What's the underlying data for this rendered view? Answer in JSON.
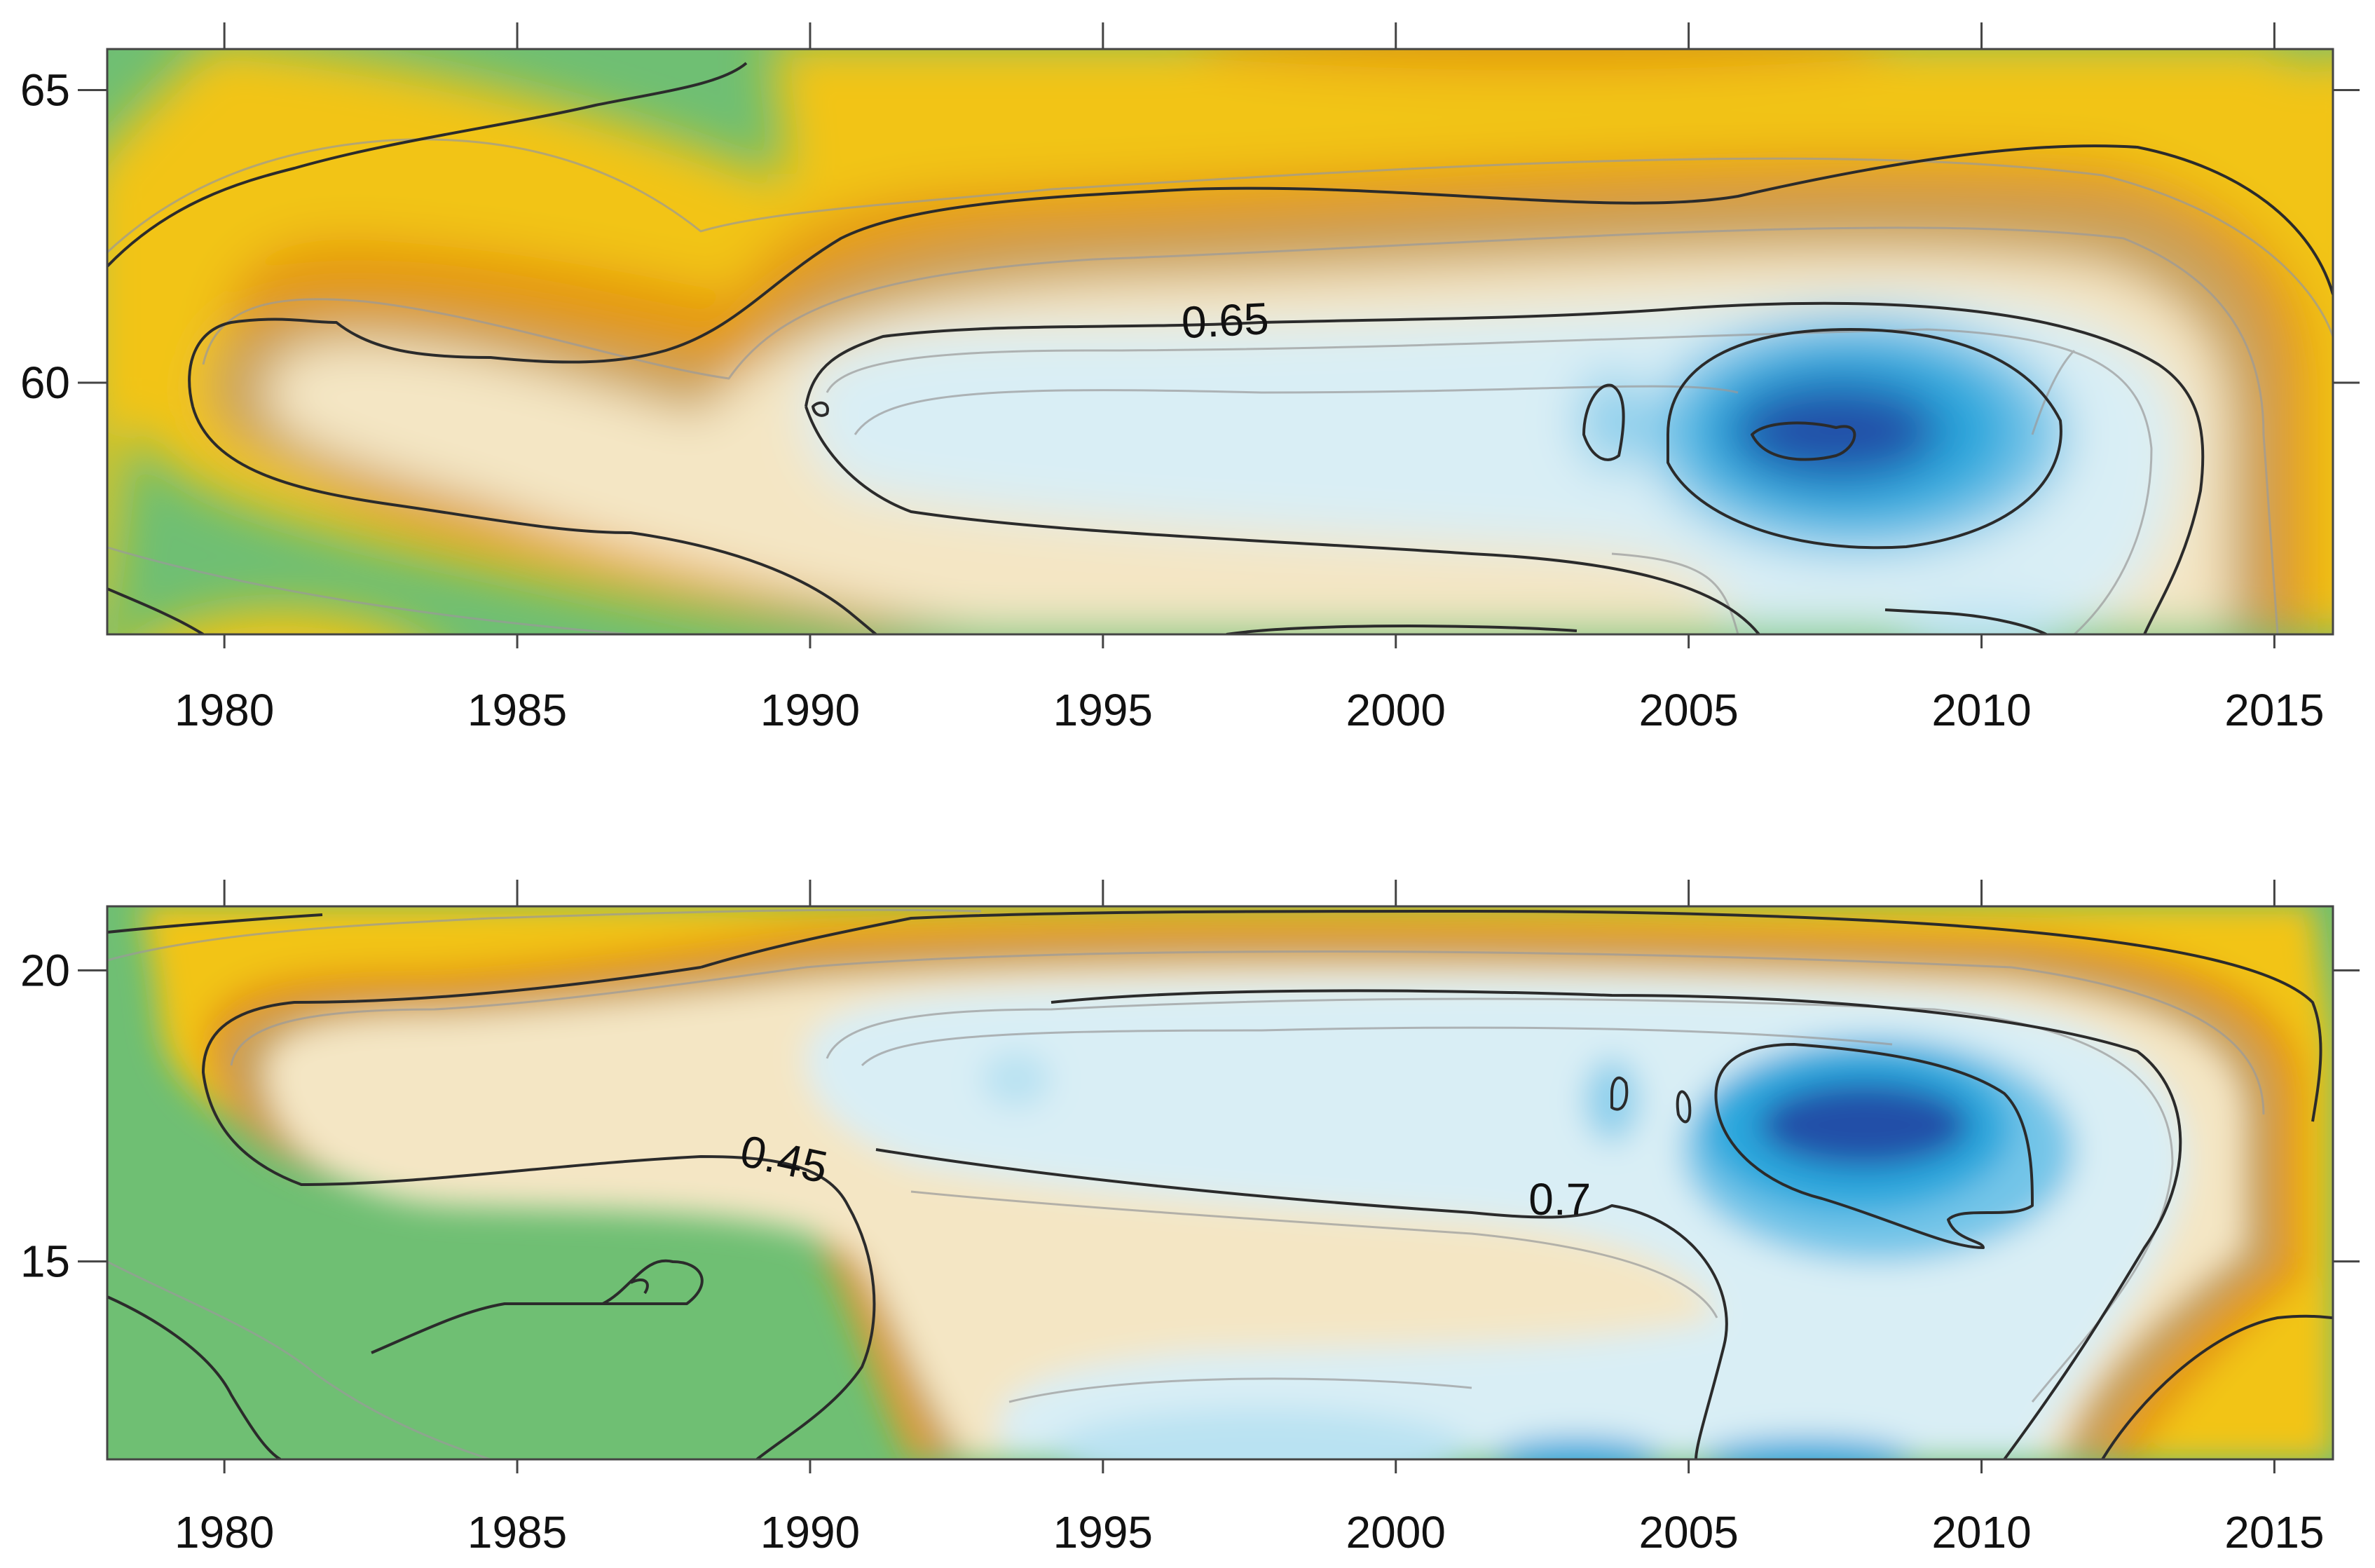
{
  "chart_data": [
    {
      "type": "heatmap",
      "panel": "top",
      "title": "",
      "xlabel": "",
      "ylabel": "",
      "xlim": [
        1978,
        2016
      ],
      "ylim": [
        55.7,
        65.7
      ],
      "x_ticks": [
        1980,
        1985,
        1990,
        1995,
        2000,
        2005,
        2010,
        2015
      ],
      "x_tick_labels": [
        "1980",
        "1985",
        "1990",
        "1995",
        "2000",
        "2005",
        "2010",
        "2015"
      ],
      "y_ticks": [
        60,
        65
      ],
      "y_tick_labels": [
        "60",
        "65"
      ],
      "contour_labels": [
        {
          "text": "0.65",
          "x": 1997.1,
          "y": 60.8
        }
      ],
      "colormap": [
        "#6fbf73",
        "#f2c417",
        "#e59a0c",
        "#c9a15a",
        "#f4e6c4",
        "#d9eef5",
        "#2aa7dd",
        "#234fa8"
      ],
      "features": [
        {
          "name": "minimum-core",
          "x_range": [
            2006,
            2010.5
          ],
          "y_range": [
            58.5,
            59.8
          ]
        }
      ]
    },
    {
      "type": "heatmap",
      "panel": "bottom",
      "title": "",
      "xlabel": "",
      "ylabel": "",
      "xlim": [
        1978,
        2016
      ],
      "ylim": [
        11.6,
        21.1
      ],
      "x_ticks": [
        1980,
        1985,
        1990,
        1995,
        2000,
        2005,
        2010,
        2015
      ],
      "x_tick_labels": [
        "1980",
        "1985",
        "1990",
        "1995",
        "2000",
        "2005",
        "2010",
        "2015"
      ],
      "y_ticks": [
        15,
        20
      ],
      "y_tick_labels": [
        "15",
        "20"
      ],
      "contour_labels": [
        {
          "text": "0.45",
          "x": 1989.5,
          "y": 16.5
        },
        {
          "text": "0.7",
          "x": 2002.8,
          "y": 15.8
        }
      ],
      "colormap": [
        "#6fbf73",
        "#f2c417",
        "#e59a0c",
        "#c9a15a",
        "#f4e6c4",
        "#d9eef5",
        "#2aa7dd",
        "#234fa8"
      ],
      "features": [
        {
          "name": "minimum-core",
          "x_range": [
            2006.5,
            2010
          ],
          "y_range": [
            16.6,
            18.0
          ]
        }
      ]
    }
  ]
}
